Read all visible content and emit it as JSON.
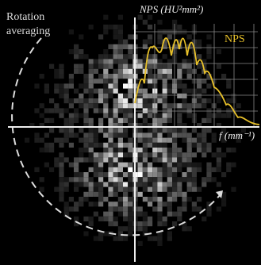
{
  "annotation": {
    "lines": [
      "Rotation",
      "averaging"
    ]
  },
  "axes": {
    "y_label": "NPS (HU²mm²)",
    "x_label": "f (mm⁻¹)"
  },
  "curve_label": "NPS"
}
